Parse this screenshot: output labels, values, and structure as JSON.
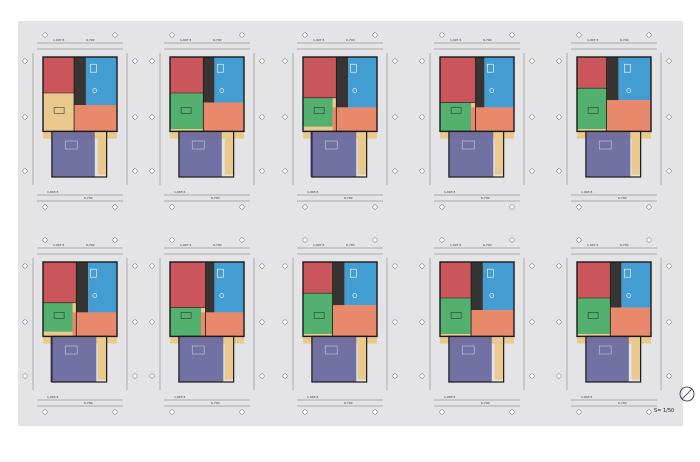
{
  "sheet": {
    "scale_label": "S= 1/50",
    "north_icon": "north-arrow-icon"
  },
  "plans": [
    {
      "row": 1,
      "col": 1,
      "dims_top": [
        "1,997.5",
        "6,700"
      ],
      "dims_bottom": [
        "1,993.5",
        "6,700"
      ],
      "rooms": [
        "bedroom",
        "kitchen",
        "bath",
        "living",
        "dining",
        "terrace"
      ]
    },
    {
      "row": 1,
      "col": 2,
      "dims_top": [
        "1,997.5",
        "6,700"
      ],
      "dims_bottom": [
        "1,993.5",
        "6,700"
      ],
      "rooms": [
        "bedroom",
        "kitchen",
        "bath",
        "living",
        "dining",
        "terrace"
      ]
    },
    {
      "row": 1,
      "col": 3,
      "dims_top": [
        "1,997.5",
        "6,700"
      ],
      "dims_bottom": [
        "1,993.5",
        "6,700"
      ],
      "rooms": [
        "bedroom",
        "kitchen",
        "bath",
        "living",
        "dining",
        "terrace"
      ]
    },
    {
      "row": 1,
      "col": 4,
      "dims_top": [
        "1,997.5",
        "6,700"
      ],
      "dims_bottom": [
        "1,993.5",
        "6,700"
      ],
      "rooms": [
        "bedroom",
        "kitchen",
        "bath",
        "living",
        "dining",
        "terrace"
      ]
    },
    {
      "row": 1,
      "col": 5,
      "dims_top": [
        "1,997.5",
        "6,700"
      ],
      "dims_bottom": [
        "1,993.5",
        "6,700"
      ],
      "rooms": [
        "bedroom",
        "kitchen",
        "bath",
        "living",
        "dining",
        "terrace"
      ]
    },
    {
      "row": 2,
      "col": 1,
      "dims_top": [
        "1,997.5",
        "6,700"
      ],
      "dims_bottom": [
        "1,993.5",
        "6,700"
      ],
      "rooms": [
        "bedroom",
        "kitchen",
        "bath",
        "living",
        "dining",
        "terrace"
      ]
    },
    {
      "row": 2,
      "col": 2,
      "dims_top": [
        "1,997.5",
        "6,700"
      ],
      "dims_bottom": [
        "1,993.5",
        "6,700"
      ],
      "rooms": [
        "bedroom",
        "kitchen",
        "bath",
        "living",
        "dining",
        "terrace"
      ]
    },
    {
      "row": 2,
      "col": 3,
      "dims_top": [
        "1,997.5",
        "6,700"
      ],
      "dims_bottom": [
        "1,993.5",
        "6,700"
      ],
      "rooms": [
        "bedroom",
        "kitchen",
        "bath",
        "living",
        "dining",
        "terrace"
      ]
    },
    {
      "row": 2,
      "col": 4,
      "dims_top": [
        "1,997.5",
        "6,700"
      ],
      "dims_bottom": [
        "1,993.5",
        "6,700"
      ],
      "rooms": [
        "bedroom",
        "kitchen",
        "bath",
        "living",
        "dining",
        "terrace"
      ]
    },
    {
      "row": 2,
      "col": 5,
      "dims_top": [
        "1,997.5",
        "6,700"
      ],
      "dims_bottom": [
        "1,993.5",
        "6,700"
      ],
      "rooms": [
        "bedroom",
        "kitchen",
        "bath",
        "living",
        "dining",
        "terrace"
      ]
    }
  ],
  "colors": {
    "bedroom": "#c8505a",
    "kitchen": "#2d2d2f",
    "bath": "#3b9bd6",
    "living": "#4caf6e",
    "dining": "#e8866a",
    "terrace": "#6b6aa0",
    "wood": "#e9c98c",
    "wall": "#1a1a1a",
    "sheet": "#e4e3e5",
    "dim_line": "#555555"
  }
}
